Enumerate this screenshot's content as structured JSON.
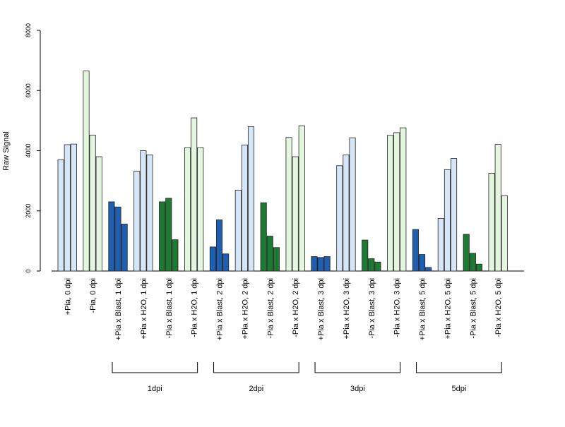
{
  "chart_data": {
    "type": "bar",
    "title": "",
    "xlabel": "",
    "ylabel": "Raw Signal",
    "ylim": [
      0,
      8000
    ],
    "yticks": [
      0,
      2000,
      4000,
      6000,
      8000
    ],
    "categories": [
      "+Pia, 0 dpi",
      "-Pia, 0 dpi",
      "+Pia x Blast, 1 dpi",
      "+Pia x H2O, 1 dpi",
      "-Pia x Blast, 1 dpi",
      "-Pia x H2O, 1 dpi",
      "+Pia x Blast, 2 dpi",
      "+Pia x H2O, 2 dpi",
      "-Pia x Blast, 2 dpi",
      "-Pia x H2O, 2 dpi",
      "+Pia x Blast, 3 dpi",
      "+Pia x H2O, 3 dpi",
      "-Pia x Blast, 3 dpi",
      "-Pia x H2O, 3 dpi",
      "+Pia x Blast, 5 dpi",
      "+Pia x H2O, 5 dpi",
      "-Pia x Blast, 5 dpi",
      "-Pia x H2O, 5 dpi"
    ],
    "replicates": [
      [
        3700,
        4200,
        4220
      ],
      [
        6650,
        4520,
        3800
      ],
      [
        2300,
        2130,
        1560
      ],
      [
        3320,
        4000,
        3860
      ],
      [
        2300,
        2420,
        1040
      ],
      [
        4100,
        5090,
        4100
      ],
      [
        800,
        1700,
        570
      ],
      [
        2690,
        4190,
        4800
      ],
      [
        2270,
        1160,
        780
      ],
      [
        4440,
        3800,
        4830
      ],
      [
        480,
        450,
        480
      ],
      [
        3500,
        3860,
        4430
      ],
      [
        1030,
        410,
        300
      ],
      [
        4510,
        4600,
        4760
      ],
      [
        1380,
        550,
        120
      ],
      [
        1750,
        3370,
        3740
      ],
      [
        1220,
        590,
        230
      ],
      [
        3250,
        4210,
        2500
      ]
    ],
    "category_colors": [
      "#d6e6f7",
      "#e4f6e0",
      "#1f5fb0",
      "#d6e6f7",
      "#1e7a32",
      "#e4f6e0",
      "#1f5fb0",
      "#d6e6f7",
      "#1e7a32",
      "#e4f6e0",
      "#1f5fb0",
      "#d6e6f7",
      "#1e7a32",
      "#e4f6e0",
      "#1f5fb0",
      "#d6e6f7",
      "#1e7a32",
      "#e4f6e0"
    ],
    "groups": [
      {
        "label": "1dpi",
        "from": 2,
        "to": 5
      },
      {
        "label": "2dpi",
        "from": 6,
        "to": 9
      },
      {
        "label": "3dpi",
        "from": 10,
        "to": 13
      },
      {
        "label": "5dpi",
        "from": 14,
        "to": 17
      }
    ],
    "grid": false,
    "legend": "none"
  }
}
